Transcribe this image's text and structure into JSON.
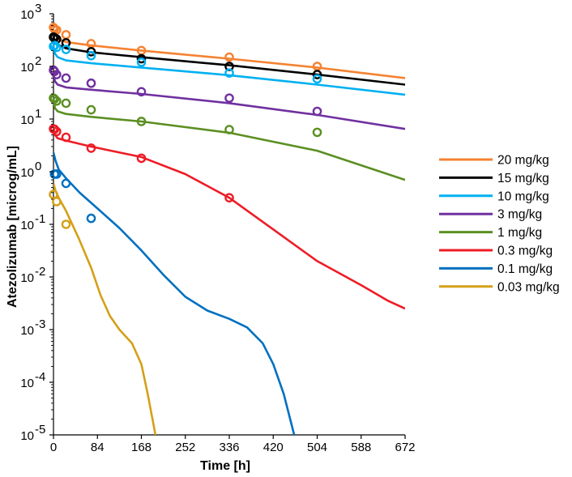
{
  "chart_data": {
    "type": "line",
    "title": "",
    "xlabel": "Time [h]",
    "ylabel": "Atezolizumab [microg/mL]",
    "xlim": [
      0,
      672
    ],
    "ylim_log10": [
      -5,
      3
    ],
    "y_scale": "log",
    "grid": false,
    "legend_position": "right",
    "x_ticks": [
      "0",
      "84",
      "168",
      "252",
      "336",
      "420",
      "504",
      "588",
      "672"
    ],
    "x_tick_values": [
      0,
      84,
      168,
      252,
      336,
      420,
      504,
      588,
      672
    ],
    "y_ticks": [
      {
        "exp": -5,
        "base": "10",
        "sup": "-5"
      },
      {
        "exp": -4,
        "base": "10",
        "sup": "-4"
      },
      {
        "exp": -3,
        "base": "10",
        "sup": "-3"
      },
      {
        "exp": -2,
        "base": "10",
        "sup": "-2"
      },
      {
        "exp": -1,
        "base": "10",
        "sup": "-1"
      },
      {
        "exp": 0,
        "base": "10",
        "sup": "0"
      },
      {
        "exp": 1,
        "base": "10",
        "sup": "1"
      },
      {
        "exp": 2,
        "base": "10",
        "sup": "2"
      },
      {
        "exp": 3,
        "base": "10",
        "sup": "3"
      }
    ],
    "series": [
      {
        "name": "20 mg/kg",
        "color": "#f58231",
        "line": [
          [
            0,
            480
          ],
          [
            1,
            440
          ],
          [
            4,
            390
          ],
          [
            10,
            330
          ],
          [
            24,
            290
          ],
          [
            72,
            250
          ],
          [
            168,
            200
          ],
          [
            336,
            140
          ],
          [
            504,
            95
          ],
          [
            672,
            60
          ]
        ],
        "obs": [
          [
            0,
            550
          ],
          [
            2,
            510
          ],
          [
            6,
            490
          ],
          [
            24,
            400
          ],
          [
            72,
            270
          ],
          [
            168,
            200
          ],
          [
            336,
            150
          ],
          [
            504,
            100
          ]
        ]
      },
      {
        "name": "15 mg/kg",
        "color": "#000000",
        "line": [
          [
            0,
            370
          ],
          [
            1,
            340
          ],
          [
            4,
            300
          ],
          [
            10,
            255
          ],
          [
            24,
            220
          ],
          [
            72,
            185
          ],
          [
            168,
            150
          ],
          [
            336,
            105
          ],
          [
            504,
            70
          ],
          [
            672,
            45
          ]
        ],
        "obs": [
          [
            0,
            360
          ],
          [
            2,
            350
          ],
          [
            6,
            330
          ],
          [
            24,
            280
          ],
          [
            72,
            190
          ],
          [
            168,
            140
          ],
          [
            336,
            100
          ],
          [
            504,
            70
          ]
        ]
      },
      {
        "name": "10 mg/kg",
        "color": "#00b0f0",
        "line": [
          [
            0,
            250
          ],
          [
            1,
            210
          ],
          [
            3,
            175
          ],
          [
            8,
            150
          ],
          [
            24,
            130
          ],
          [
            72,
            115
          ],
          [
            168,
            95
          ],
          [
            336,
            68
          ],
          [
            504,
            45
          ],
          [
            672,
            29
          ]
        ],
        "obs": [
          [
            0,
            240
          ],
          [
            2,
            250
          ],
          [
            6,
            230
          ],
          [
            24,
            210
          ],
          [
            72,
            160
          ],
          [
            168,
            120
          ],
          [
            336,
            75
          ],
          [
            504,
            58
          ]
        ]
      },
      {
        "name": "3 mg/kg",
        "color": "#7030a0",
        "line": [
          [
            0,
            80
          ],
          [
            1,
            62
          ],
          [
            3,
            52
          ],
          [
            8,
            45
          ],
          [
            24,
            40
          ],
          [
            72,
            36
          ],
          [
            168,
            30
          ],
          [
            336,
            20
          ],
          [
            504,
            12
          ],
          [
            672,
            6.5
          ]
        ],
        "obs": [
          [
            0,
            85
          ],
          [
            2,
            80
          ],
          [
            6,
            70
          ],
          [
            24,
            60
          ],
          [
            72,
            48
          ],
          [
            168,
            33
          ],
          [
            336,
            25
          ],
          [
            504,
            14
          ]
        ]
      },
      {
        "name": "1 mg/kg",
        "color": "#5b8f22",
        "line": [
          [
            0,
            25
          ],
          [
            1,
            20
          ],
          [
            3,
            16
          ],
          [
            8,
            14
          ],
          [
            24,
            12.5
          ],
          [
            72,
            11
          ],
          [
            168,
            9
          ],
          [
            336,
            5.5
          ],
          [
            504,
            2.5
          ],
          [
            672,
            0.7
          ]
        ],
        "obs": [
          [
            0,
            25
          ],
          [
            2,
            24
          ],
          [
            6,
            22
          ],
          [
            24,
            20
          ],
          [
            72,
            15
          ],
          [
            168,
            9
          ],
          [
            336,
            6.3
          ],
          [
            504,
            5.6
          ]
        ]
      },
      {
        "name": "0.3 mg/kg",
        "color": "#ee1c25",
        "line": [
          [
            0,
            7
          ],
          [
            1,
            6
          ],
          [
            3,
            5
          ],
          [
            8,
            4.3
          ],
          [
            24,
            3.9
          ],
          [
            72,
            3
          ],
          [
            168,
            1.9
          ],
          [
            252,
            0.9
          ],
          [
            336,
            0.32
          ],
          [
            420,
            0.08
          ],
          [
            504,
            0.02
          ],
          [
            588,
            0.007
          ],
          [
            640,
            0.0035
          ],
          [
            672,
            0.0025
          ]
        ],
        "obs": [
          [
            0,
            6.5
          ],
          [
            2,
            6.4
          ],
          [
            6,
            5.8
          ],
          [
            24,
            4.5
          ],
          [
            72,
            2.8
          ],
          [
            168,
            1.8
          ],
          [
            336,
            0.32
          ]
        ]
      },
      {
        "name": "0.1 mg/kg",
        "color": "#0070c0",
        "line": [
          [
            0,
            2.3
          ],
          [
            4,
            1.6
          ],
          [
            10,
            1.1
          ],
          [
            24,
            0.75
          ],
          [
            50,
            0.4
          ],
          [
            84,
            0.2
          ],
          [
            126,
            0.085
          ],
          [
            168,
            0.032
          ],
          [
            210,
            0.011
          ],
          [
            252,
            0.0042
          ],
          [
            294,
            0.0023
          ],
          [
            336,
            0.0016
          ],
          [
            370,
            0.0011
          ],
          [
            400,
            0.00055
          ],
          [
            420,
            0.00022
          ],
          [
            440,
            6e-05
          ],
          [
            460,
            1e-05
          ]
        ],
        "obs": [
          [
            2,
            0.9
          ],
          [
            6,
            0.9
          ],
          [
            24,
            0.6
          ],
          [
            72,
            0.13
          ]
        ]
      },
      {
        "name": "0.03 mg/kg",
        "color": "#d4a017",
        "line": [
          [
            0,
            0.6
          ],
          [
            4,
            0.43
          ],
          [
            10,
            0.32
          ],
          [
            24,
            0.18
          ],
          [
            48,
            0.055
          ],
          [
            72,
            0.015
          ],
          [
            90,
            0.0045
          ],
          [
            108,
            0.0018
          ],
          [
            126,
            0.001
          ],
          [
            150,
            0.00055
          ],
          [
            168,
            0.00022
          ],
          [
            180,
            6e-05
          ],
          [
            195,
            1e-05
          ]
        ],
        "obs": [
          [
            0,
            0.37
          ],
          [
            6,
            0.27
          ],
          [
            24,
            0.1
          ]
        ]
      }
    ]
  }
}
